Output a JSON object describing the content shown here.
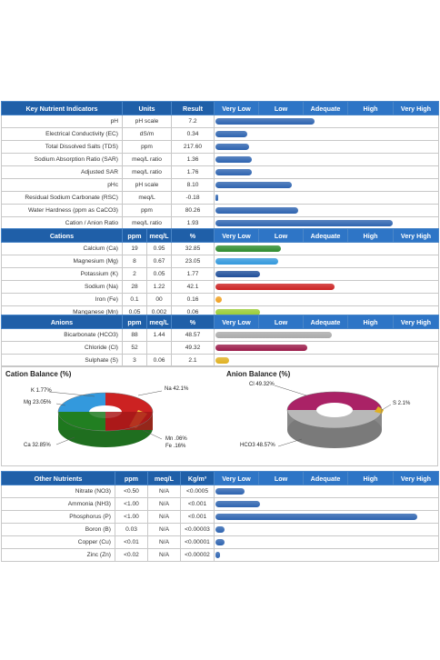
{
  "key_indicators": {
    "headers": [
      "Key Nutrient Indicators",
      "Units",
      "Result",
      "Very Low",
      "Low",
      "Adequate",
      "High",
      "Very High"
    ],
    "rows": [
      {
        "name": "pH",
        "unit": "pH scale",
        "result": "7.2",
        "level": 0.44,
        "color": "#2e64b0"
      },
      {
        "name": "Electrical Conductivity (EC)",
        "unit": "dS/m",
        "result": "0.34",
        "level": 0.14,
        "color": "#2e64b0"
      },
      {
        "name": "Total Dissolved Salts (TDS)",
        "unit": "ppm",
        "result": "217.60",
        "level": 0.15,
        "color": "#2e64b0"
      },
      {
        "name": "Sodium Absorption Ratio (SAR)",
        "unit": "meq/L ratio",
        "result": "1.36",
        "level": 0.16,
        "color": "#2e64b0"
      },
      {
        "name": "Adjusted SAR",
        "unit": "meq/L ratio",
        "result": "1.76",
        "level": 0.16,
        "color": "#2e64b0"
      },
      {
        "name": "pHc",
        "unit": "pH scale",
        "result": "8.10",
        "level": 0.34,
        "color": "#2e64b0"
      },
      {
        "name": "Residual Sodium Carbonate (RSC)",
        "unit": "meq/L",
        "result": "-0.18",
        "level": 0.0,
        "color": "#2e64b0"
      },
      {
        "name": "Water Hardness (ppm as CaCO3)",
        "unit": "ppm",
        "result": "80.26",
        "level": 0.37,
        "color": "#2e64b0"
      },
      {
        "name": "Cation / Anion Ratio",
        "unit": "meq/L ratio",
        "result": "1.93",
        "level": 0.79,
        "color": "#2e64b0"
      }
    ]
  },
  "cations": {
    "headers": [
      "Cations",
      "ppm",
      "meq/L",
      "%",
      "Very Low",
      "Low",
      "Adequate",
      "High",
      "Very High"
    ],
    "rows": [
      {
        "name": "Calcium (Ca)",
        "ppm": "19",
        "meq": "0.95",
        "pct": "32.85",
        "level": 0.29,
        "color": "#2e8b2e"
      },
      {
        "name": "Magnesium (Mg)",
        "ppm": "8",
        "meq": "0.67",
        "pct": "23.05",
        "level": 0.28,
        "color": "#3399dd"
      },
      {
        "name": "Potassium (K)",
        "ppm": "2",
        "meq": "0.05",
        "pct": "1.77",
        "level": 0.2,
        "color": "#1f4f9a"
      },
      {
        "name": "Sodium (Na)",
        "ppm": "28",
        "meq": "1.22",
        "pct": "42.1",
        "level": 0.53,
        "color": "#cc2222"
      },
      {
        "name": "Iron (Fe)",
        "ppm": "0.1",
        "meq": "00",
        "pct": "0.16",
        "level": 0.03,
        "color": "#f0a020"
      },
      {
        "name": "Manganese (Mn)",
        "ppm": "0.05",
        "meq": "0.002",
        "pct": "0.06",
        "level": 0.2,
        "color": "#99cc33"
      }
    ]
  },
  "anions": {
    "headers": [
      "Anions",
      "ppm",
      "meq/L",
      "%",
      "Very Low",
      "Low",
      "Adequate",
      "High",
      "Very High"
    ],
    "rows": [
      {
        "name": "Bicarbonate (HCO3)",
        "ppm": "88",
        "meq": "1.44",
        "pct": "48.57",
        "level": 0.52,
        "color": "#aaaaaa"
      },
      {
        "name": "Chloride (Cl)",
        "ppm": "52",
        "meq": "",
        "pct": "49.32",
        "level": 0.41,
        "color": "#9b1c4a"
      },
      {
        "name": "Sulphate (S)",
        "ppm": "3",
        "meq": "0.06",
        "pct": "2.1",
        "level": 0.06,
        "color": "#e0b020"
      }
    ]
  },
  "cation_balance": {
    "title": "Cation Balance (%)",
    "labels": {
      "k": "K 1.77%",
      "na": "Na 42.1%",
      "mg": "Mg 23.05%",
      "mn": "Mn .06%",
      "fe": "Fe .16%",
      "ca": "Ca 32.85%"
    }
  },
  "anion_balance": {
    "title": "Anion Balance (%)",
    "labels": {
      "cl": "Cl 49.32%",
      "s": "S 2.1%",
      "hco3": "HCO3 48.57%"
    }
  },
  "other": {
    "headers": [
      "Other Nutrients",
      "ppm",
      "meq/L",
      "Kg/m³",
      "Very Low",
      "Low",
      "Adequate",
      "High",
      "Very High"
    ],
    "rows": [
      {
        "name": "Nitrate (NO3)",
        "ppm": "<0.50",
        "meq": "N/A",
        "kg": "<0.0005",
        "level": 0.13,
        "color": "#2e64b0"
      },
      {
        "name": "Ammonia (NH3)",
        "ppm": "<1.00",
        "meq": "N/A",
        "kg": "<0.001",
        "level": 0.2,
        "color": "#2e64b0"
      },
      {
        "name": "Phosphorus (P)",
        "ppm": "<1.00",
        "meq": "N/A",
        "kg": "<0.001",
        "level": 0.9,
        "color": "#2e64b0"
      },
      {
        "name": "Boron (B)",
        "ppm": "0.03",
        "meq": "N/A",
        "kg": "<0.00003",
        "level": 0.04,
        "color": "#2e64b0"
      },
      {
        "name": "Copper (Cu)",
        "ppm": "<0.01",
        "meq": "N/A",
        "kg": "<0.00001",
        "level": 0.04,
        "color": "#2e64b0"
      },
      {
        "name": "Zinc (Zn)",
        "ppm": "<0.02",
        "meq": "N/A",
        "kg": "<0.00002",
        "level": 0.02,
        "color": "#2e64b0"
      }
    ]
  }
}
